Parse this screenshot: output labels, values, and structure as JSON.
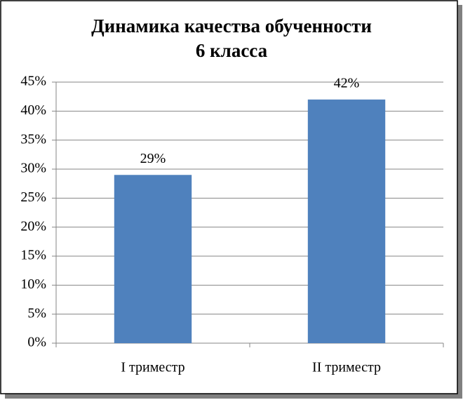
{
  "chart_data": {
    "type": "bar",
    "title": [
      "Динамика качества обученности",
      "6 класса"
    ],
    "categories": [
      "I триместр",
      "II триместр"
    ],
    "values": [
      29,
      42
    ],
    "value_labels": [
      "29%",
      "42%"
    ],
    "color": "#4f81bd",
    "ylim": [
      0,
      45
    ],
    "yticks": [
      {
        "value": 0,
        "label": "0%"
      },
      {
        "value": 5,
        "label": "5%"
      },
      {
        "value": 10,
        "label": "10%"
      },
      {
        "value": 15,
        "label": "15%"
      },
      {
        "value": 20,
        "label": "20%"
      },
      {
        "value": 25,
        "label": "25%"
      },
      {
        "value": 30,
        "label": "30%"
      },
      {
        "value": 35,
        "label": "35%"
      },
      {
        "value": 40,
        "label": "40%"
      },
      {
        "value": 45,
        "label": "45%"
      }
    ],
    "grid": true
  }
}
